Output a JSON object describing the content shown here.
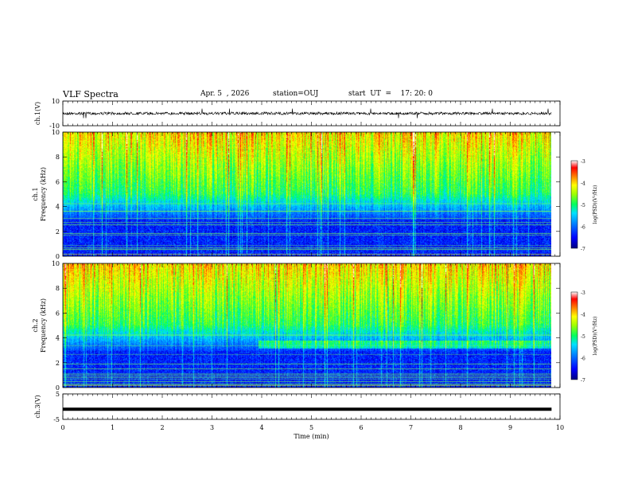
{
  "header": {
    "title": "VLF Spectra",
    "date": "Apr. 5  , 2026",
    "station": "station=OUJ",
    "start": "start  UT  =    17: 20: 0"
  },
  "colors": {
    "colormap": [
      "#000080",
      "#0000ff",
      "#0050ff",
      "#00c8ff",
      "#00ff80",
      "#80ff00",
      "#ffff00",
      "#ff8000",
      "#ff0000",
      "#ffffff"
    ],
    "trace": "#000000",
    "frame": "#000000"
  },
  "chart_data": [
    {
      "type": "line",
      "ylabel": "ch.1(V)",
      "ylim": [
        -10,
        10
      ],
      "yticks": [
        "10",
        "-10"
      ],
      "mean": 0,
      "note": "noisy waveform trace around 0 V"
    },
    {
      "type": "heatmap",
      "ylabel": "ch.1\nFrequency  (kHz)",
      "ylim": [
        0,
        10
      ],
      "yticks": [
        "10",
        "8",
        "6",
        "4",
        "2",
        "0"
      ],
      "colorbar": {
        "label": "log(PSD)(V²/Hz)",
        "range": [
          -7,
          -3
        ],
        "ticks": [
          "-3",
          "-4",
          "-5",
          "-6",
          "-7"
        ]
      }
    },
    {
      "type": "heatmap",
      "ylabel": "ch.2\nFrequency  (kHz)",
      "ylim": [
        0,
        10
      ],
      "yticks": [
        "10",
        "8",
        "6",
        "4",
        "2",
        "0"
      ],
      "colorbar": {
        "label": "log(PSD)(V²/Hz)",
        "range": [
          -7,
          -3
        ],
        "ticks": [
          "-3",
          "-4",
          "-5",
          "-6",
          "-7"
        ]
      }
    },
    {
      "type": "line",
      "ylabel": "ch.3(V)",
      "ylim": [
        -5,
        5
      ],
      "yticks": [
        "5",
        "-5"
      ],
      "constant_value": -1,
      "note": "thick flat trace"
    }
  ],
  "xaxis": {
    "label": "Time  (min)",
    "range": [
      0,
      10
    ],
    "data_end": 9.83,
    "ticks": [
      "0",
      "1",
      "2",
      "3",
      "4",
      "5",
      "6",
      "7",
      "8",
      "9",
      "10"
    ]
  }
}
